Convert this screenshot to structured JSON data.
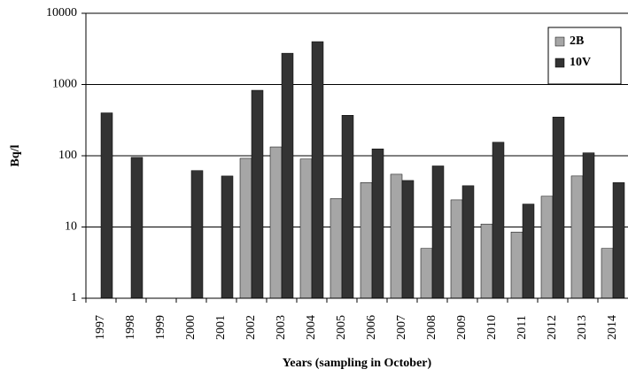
{
  "chart_data": {
    "type": "bar",
    "y_label": "Bq/l",
    "x_label": "Years (sampling in October)",
    "categories": [
      "1997",
      "1998",
      "1999",
      "2000",
      "2001",
      "2002",
      "2003",
      "2004",
      "2005",
      "2006",
      "2007",
      "2008",
      "2009",
      "2010",
      "2011",
      "2012",
      "2013",
      "2014"
    ],
    "series": [
      {
        "name": "2B",
        "color": "#a6a6a6",
        "values": [
          null,
          null,
          null,
          null,
          null,
          92,
          133,
          90,
          25,
          42,
          55,
          5,
          24,
          11,
          8.5,
          27,
          52,
          5
        ]
      },
      {
        "name": "10V",
        "color": "#333333",
        "values": [
          400,
          95,
          null,
          62,
          52,
          830,
          2750,
          4000,
          370,
          125,
          45,
          72,
          38,
          155,
          21,
          350,
          110,
          42
        ]
      }
    ],
    "ylim": [
      1,
      10000
    ],
    "yticks": [
      1,
      10,
      100,
      1000,
      10000
    ],
    "log_scale": true,
    "grid": true,
    "legend": "top-right"
  }
}
